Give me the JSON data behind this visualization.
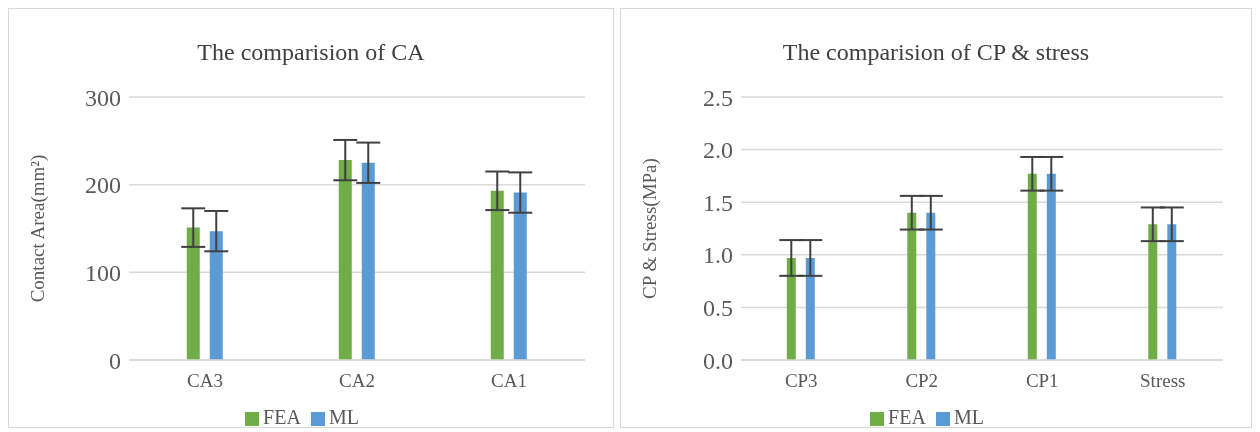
{
  "chart_data": [
    {
      "type": "bar",
      "title": "The comparision of CA",
      "ylabel": "Contact Area(mm²)",
      "categories": [
        "CA3",
        "CA2",
        "CA1"
      ],
      "series": [
        {
          "name": "FEA",
          "color": "#70ad47",
          "values": [
            151,
            228,
            193
          ],
          "errors": [
            22,
            23,
            22
          ]
        },
        {
          "name": "ML",
          "color": "#5b9bd5",
          "values": [
            147,
            225,
            191
          ],
          "errors": [
            23,
            23,
            23
          ]
        }
      ],
      "ylim": [
        0,
        300
      ],
      "yticks": [
        0,
        100,
        200,
        300
      ],
      "grid": "y",
      "legend": "bottom"
    },
    {
      "type": "bar",
      "title": "The comparision of CP & stress",
      "ylabel": "CP & Stress(MPa)",
      "categories": [
        "CP3",
        "CP2",
        "CP1",
        "Stress"
      ],
      "series": [
        {
          "name": "FEA",
          "color": "#70ad47",
          "values": [
            0.97,
            1.4,
            1.77,
            1.29
          ],
          "errors": [
            0.17,
            0.16,
            0.16,
            0.16
          ]
        },
        {
          "name": "ML",
          "color": "#5b9bd5",
          "values": [
            0.97,
            1.4,
            1.77,
            1.29
          ],
          "errors": [
            0.17,
            0.16,
            0.16,
            0.16
          ]
        }
      ],
      "ylim": [
        0,
        2.5
      ],
      "yticks": [
        {
          "value": 0,
          "label": "0.0"
        },
        {
          "value": 0.5,
          "label": "0.5"
        },
        {
          "value": 1,
          "label": "1.0"
        },
        {
          "value": 1.5,
          "label": "1.5"
        },
        {
          "value": 2,
          "label": "2.0"
        },
        {
          "value": 2.5,
          "label": "2.5"
        }
      ],
      "grid": "y",
      "legend": "bottom"
    }
  ]
}
